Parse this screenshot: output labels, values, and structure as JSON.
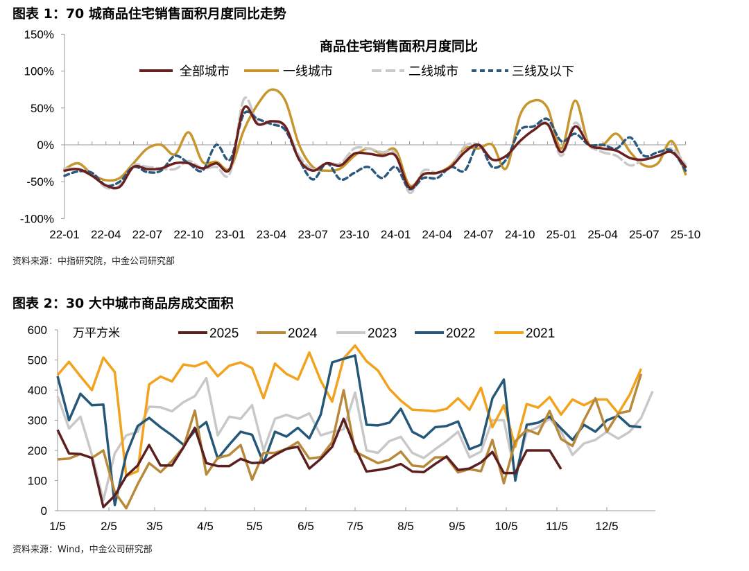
{
  "figure1": {
    "title": "图表 1：70 城商品住宅销售面积月度同比走势",
    "source": "资料来源：中指研究院，中金公司研究部"
  },
  "figure2": {
    "title": "图表 2：30 大中城市商品房成交面积",
    "source": "资料来源：Wind，中金公司研究部"
  },
  "chart_data": [
    {
      "type": "line",
      "title": "商品住宅销售面积月度同比",
      "xlabel": "",
      "ylabel": "",
      "ylim": [
        -100,
        150
      ],
      "y_unit": "%",
      "yticks": [
        "150%",
        "100%",
        "50%",
        "0%",
        "-50%",
        "-100%"
      ],
      "ytick_values": [
        150,
        100,
        50,
        0,
        -50,
        -100
      ],
      "x_start": "22-01",
      "x_end": "25-10",
      "xticks": [
        "22-01",
        "22-04",
        "22-07",
        "22-10",
        "23-01",
        "23-04",
        "23-07",
        "23-10",
        "24-01",
        "24-04",
        "24-07",
        "24-10",
        "25-01",
        "25-04",
        "25-07",
        "25-10"
      ],
      "legend": "top",
      "grid": false,
      "series": [
        {
          "name": "全部城市",
          "color": "#6b2020",
          "style": "solid",
          "values": [
            -35,
            -33,
            -42,
            -55,
            -57,
            -30,
            -33,
            -32,
            -25,
            -25,
            -32,
            -25,
            -32,
            50,
            28,
            32,
            25,
            -20,
            -35,
            -25,
            -28,
            -12,
            -12,
            -15,
            -15,
            -58,
            -40,
            -38,
            -30,
            -10,
            0,
            -20,
            -15,
            5,
            20,
            28,
            -10,
            25,
            0,
            -5,
            -8,
            -18,
            -20,
            -15,
            -10,
            -30
          ]
        },
        {
          "name": "一线城市",
          "color": "#c8962e",
          "style": "solid",
          "values": [
            -33,
            -25,
            -40,
            -48,
            -45,
            -25,
            -5,
            0,
            -13,
            17,
            -23,
            -23,
            -32,
            20,
            55,
            75,
            60,
            0,
            -30,
            -35,
            -32,
            -15,
            -5,
            -12,
            -7,
            -55,
            -40,
            -38,
            -28,
            -5,
            -5,
            0,
            -32,
            40,
            60,
            50,
            -5,
            60,
            0,
            0,
            15,
            -10,
            -28,
            -25,
            5,
            -40
          ]
        },
        {
          "name": "二线城市",
          "color": "#c9c9c9",
          "style": "longdash",
          "values": [
            -32,
            -33,
            -40,
            -58,
            -55,
            -28,
            -30,
            -32,
            -33,
            -22,
            -32,
            -30,
            -38,
            62,
            30,
            30,
            25,
            -15,
            -33,
            -25,
            -25,
            -5,
            -5,
            -10,
            -12,
            -65,
            -35,
            -38,
            -30,
            -2,
            0,
            -20,
            -15,
            5,
            20,
            30,
            -15,
            30,
            0,
            -10,
            -15,
            -28,
            -20,
            -15,
            -5,
            -27
          ]
        },
        {
          "name": "三线及以下",
          "color": "#2b5a7e",
          "style": "dash",
          "values": [
            -42,
            -36,
            -38,
            -55,
            -50,
            -30,
            -37,
            -35,
            -15,
            -25,
            -35,
            0,
            -20,
            42,
            35,
            28,
            20,
            -20,
            -47,
            -25,
            -47,
            -38,
            -30,
            -45,
            -30,
            -60,
            -45,
            -45,
            -30,
            -35,
            0,
            -30,
            -20,
            20,
            25,
            35,
            5,
            15,
            0,
            0,
            -5,
            10,
            -15,
            -10,
            -8,
            -35
          ]
        }
      ]
    },
    {
      "type": "line",
      "title": "",
      "unit_label": "万平方米",
      "xlabel": "",
      "ylabel": "",
      "ylim": [
        0,
        600
      ],
      "yticks": [
        "0",
        "100",
        "200",
        "300",
        "400",
        "500",
        "600"
      ],
      "ytick_values": [
        0,
        100,
        200,
        300,
        400,
        500,
        600
      ],
      "xticks": [
        "1/5",
        "2/5",
        "3/5",
        "4/5",
        "5/5",
        "6/5",
        "7/5",
        "8/5",
        "9/5",
        "10/5",
        "11/5",
        "12/5"
      ],
      "x_unit": "week",
      "legend": "top",
      "grid": false,
      "series": [
        {
          "name": "2023",
          "color": "#c8c8c8",
          "values": [
            380,
            273,
            312,
            185,
            35,
            190,
            250,
            262,
            345,
            343,
            330,
            360,
            380,
            440,
            250,
            312,
            305,
            350,
            200,
            305,
            318,
            305,
            323,
            250,
            262,
            270,
            392,
            200,
            192,
            231,
            245,
            192,
            175,
            204,
            231,
            262,
            177,
            196,
            300,
            300,
            120,
            260,
            278,
            305,
            262,
            185,
            223,
            235,
            262,
            239,
            262,
            308,
            396
          ]
        },
        {
          "name": "2021",
          "color": "#f2a21c",
          "values": [
            450,
            494,
            446,
            400,
            508,
            460,
            115,
            131,
            419,
            445,
            429,
            485,
            479,
            494,
            446,
            481,
            492,
            473,
            373,
            488,
            454,
            435,
            525,
            431,
            362,
            505,
            548,
            496,
            465,
            404,
            365,
            335,
            333,
            330,
            338,
            373,
            335,
            408,
            277,
            350,
            212,
            354,
            342,
            377,
            319,
            369,
            350,
            369,
            369,
            323,
            385,
            471
          ]
        },
        {
          "name": "2022",
          "color": "#245778",
          "values": [
            446,
            300,
            388,
            350,
            352,
            19,
            185,
            281,
            308,
            277,
            250,
            219,
            265,
            294,
            173,
            219,
            262,
            252,
            158,
            262,
            246,
            275,
            240,
            319,
            492,
            504,
            515,
            285,
            283,
            292,
            338,
            262,
            242,
            277,
            281,
            296,
            204,
            219,
            373,
            435,
            100,
            285,
            292,
            312,
            273,
            235,
            285,
            262,
            300,
            315,
            281,
            277
          ]
        },
        {
          "name": "2024",
          "color": "#b8893a",
          "values": [
            170,
            173,
            188,
            175,
            200,
            62,
            8,
            88,
            158,
            128,
            165,
            210,
            332,
            120,
            175,
            185,
            218,
            103,
            192,
            192,
            205,
            228,
            173,
            178,
            228,
            400,
            196,
            177,
            158,
            169,
            196,
            150,
            146,
            177,
            177,
            127,
            138,
            131,
            235,
            91,
            230,
            269,
            254,
            331,
            238,
            215,
            300,
            373,
            262,
            323,
            331,
            454
          ]
        },
        {
          "name": "2025",
          "color": "#5c1f1f",
          "values": [
            268,
            190,
            188,
            175,
            12,
            50,
            115,
            150,
            218,
            150,
            150,
            210,
            275,
            158,
            148,
            148,
            172,
            158,
            160,
            185,
            205,
            212,
            140,
            172,
            212,
            305,
            210,
            130,
            135,
            142,
            155,
            130,
            128,
            155,
            180,
            135,
            140,
            160,
            195,
            125,
            125,
            200,
            200,
            200,
            138
          ]
        }
      ]
    }
  ]
}
